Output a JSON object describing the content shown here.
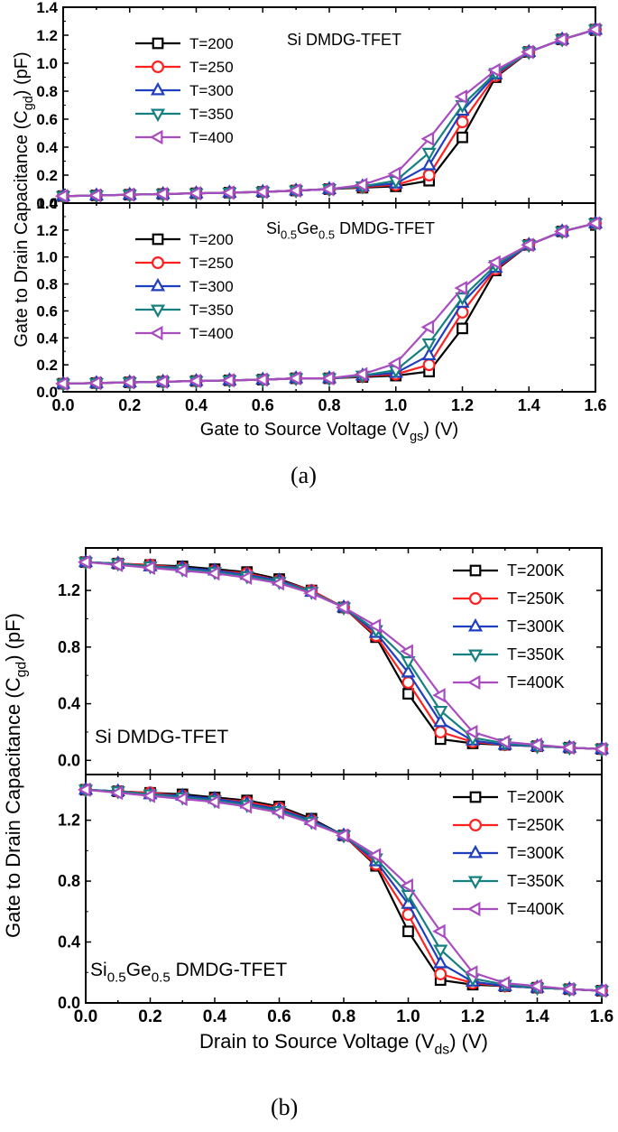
{
  "figure": {
    "label_a": "(a)",
    "label_b": "(b)"
  },
  "chart_data": [
    {
      "type": "line",
      "panel": "a-top",
      "annotation": "Si DMDG-TFET",
      "ylabel": "Gate to Drain Capacitance (C_gd) (pF)",
      "ylim": [
        0,
        1.4
      ],
      "xlim": [
        0,
        1.6
      ],
      "yticks": [
        "0.0",
        "0.2",
        "0.4",
        "0.6",
        "0.8",
        "1.0",
        "1.2",
        "1.4"
      ],
      "x": [
        0,
        0.1,
        0.2,
        0.3,
        0.4,
        0.5,
        0.6,
        0.7,
        0.8,
        0.9,
        1.0,
        1.1,
        1.2,
        1.3,
        1.4,
        1.5,
        1.6
      ],
      "legend": "top-left",
      "series": [
        {
          "name": "T=200",
          "color": "#000000",
          "marker": "square",
          "values": [
            0.05,
            0.055,
            0.06,
            0.065,
            0.07,
            0.075,
            0.08,
            0.09,
            0.1,
            0.11,
            0.12,
            0.16,
            0.47,
            0.9,
            1.08,
            1.17,
            1.24
          ]
        },
        {
          "name": "T=250",
          "color": "#ff2020",
          "marker": "circle",
          "values": [
            0.05,
            0.055,
            0.06,
            0.065,
            0.07,
            0.075,
            0.08,
            0.09,
            0.1,
            0.115,
            0.13,
            0.2,
            0.58,
            0.91,
            1.08,
            1.17,
            1.24
          ]
        },
        {
          "name": "T=300",
          "color": "#1f3fbf",
          "marker": "triangle-up",
          "values": [
            0.05,
            0.055,
            0.06,
            0.065,
            0.07,
            0.075,
            0.08,
            0.09,
            0.1,
            0.12,
            0.14,
            0.27,
            0.66,
            0.92,
            1.08,
            1.17,
            1.24
          ]
        },
        {
          "name": "T=350",
          "color": "#168080",
          "marker": "triangle-down",
          "values": [
            0.05,
            0.055,
            0.06,
            0.065,
            0.07,
            0.075,
            0.08,
            0.09,
            0.1,
            0.12,
            0.16,
            0.36,
            0.7,
            0.93,
            1.08,
            1.17,
            1.24
          ]
        },
        {
          "name": "T=400",
          "color": "#a94cc0",
          "marker": "triangle-left",
          "values": [
            0.05,
            0.055,
            0.06,
            0.065,
            0.07,
            0.075,
            0.08,
            0.09,
            0.1,
            0.13,
            0.21,
            0.46,
            0.76,
            0.95,
            1.08,
            1.17,
            1.24
          ]
        }
      ]
    },
    {
      "type": "line",
      "panel": "a-bottom",
      "annotation_base": "Si",
      "annotation_sub1": "0.5",
      "annotation_mid": "Ge",
      "annotation_sub2": "0.5",
      "annotation_tail": " DMDG-TFET",
      "xlabel": "Gate to Source Voltage (V_gs) (V)",
      "ylim": [
        0,
        1.4
      ],
      "xlim": [
        0,
        1.6
      ],
      "xticks": [
        "0.0",
        "0.2",
        "0.4",
        "0.6",
        "0.8",
        "1.0",
        "1.2",
        "1.4",
        "1.6"
      ],
      "yticks": [
        "0.0",
        "0.2",
        "0.4",
        "0.6",
        "0.8",
        "1.0",
        "1.2",
        "1.4"
      ],
      "x": [
        0,
        0.1,
        0.2,
        0.3,
        0.4,
        0.5,
        0.6,
        0.7,
        0.8,
        0.9,
        1.0,
        1.1,
        1.2,
        1.3,
        1.4,
        1.5,
        1.6
      ],
      "legend": "top-left",
      "series": [
        {
          "name": "T=200",
          "color": "#000000",
          "marker": "square",
          "values": [
            0.06,
            0.065,
            0.07,
            0.075,
            0.08,
            0.085,
            0.09,
            0.1,
            0.1,
            0.11,
            0.12,
            0.15,
            0.47,
            0.9,
            1.09,
            1.19,
            1.25
          ]
        },
        {
          "name": "T=250",
          "color": "#ff2020",
          "marker": "circle",
          "values": [
            0.06,
            0.065,
            0.07,
            0.075,
            0.08,
            0.085,
            0.09,
            0.1,
            0.1,
            0.115,
            0.13,
            0.2,
            0.59,
            0.91,
            1.09,
            1.19,
            1.25
          ]
        },
        {
          "name": "T=300",
          "color": "#1f3fbf",
          "marker": "triangle-up",
          "values": [
            0.06,
            0.065,
            0.07,
            0.075,
            0.08,
            0.085,
            0.09,
            0.1,
            0.1,
            0.12,
            0.14,
            0.27,
            0.66,
            0.92,
            1.09,
            1.19,
            1.25
          ]
        },
        {
          "name": "T=350",
          "color": "#168080",
          "marker": "triangle-down",
          "values": [
            0.06,
            0.065,
            0.07,
            0.075,
            0.08,
            0.085,
            0.09,
            0.1,
            0.1,
            0.12,
            0.16,
            0.36,
            0.7,
            0.94,
            1.09,
            1.19,
            1.25
          ]
        },
        {
          "name": "T=400",
          "color": "#a94cc0",
          "marker": "triangle-left",
          "values": [
            0.06,
            0.065,
            0.07,
            0.075,
            0.08,
            0.085,
            0.09,
            0.1,
            0.1,
            0.13,
            0.21,
            0.48,
            0.77,
            0.96,
            1.09,
            1.19,
            1.25
          ]
        }
      ]
    },
    {
      "type": "line",
      "panel": "b-top",
      "annotation": "Si DMDG-TFET",
      "ylabel": "Gate to Drain Capacitance (C_gd) (pF)",
      "ylim": [
        -0.1,
        1.5
      ],
      "xlim": [
        0,
        1.6
      ],
      "yticks": [
        "0.0",
        "0.4",
        "0.8",
        "1.2"
      ],
      "x": [
        0,
        0.1,
        0.2,
        0.3,
        0.4,
        0.5,
        0.6,
        0.7,
        0.8,
        0.9,
        1.0,
        1.1,
        1.2,
        1.3,
        1.4,
        1.5,
        1.6
      ],
      "legend": "top-right",
      "series": [
        {
          "name": "T=200K",
          "color": "#000000",
          "marker": "square",
          "values": [
            1.4,
            1.39,
            1.38,
            1.37,
            1.35,
            1.33,
            1.28,
            1.2,
            1.08,
            0.87,
            0.47,
            0.15,
            0.12,
            0.11,
            0.1,
            0.09,
            0.08
          ]
        },
        {
          "name": "T=250K",
          "color": "#ff2020",
          "marker": "circle",
          "values": [
            1.4,
            1.39,
            1.38,
            1.36,
            1.34,
            1.32,
            1.27,
            1.2,
            1.08,
            0.88,
            0.55,
            0.2,
            0.13,
            0.11,
            0.1,
            0.09,
            0.08
          ]
        },
        {
          "name": "T=300K",
          "color": "#1f3fbf",
          "marker": "triangle-up",
          "values": [
            1.4,
            1.39,
            1.37,
            1.36,
            1.34,
            1.31,
            1.27,
            1.19,
            1.08,
            0.9,
            0.62,
            0.27,
            0.14,
            0.11,
            0.1,
            0.09,
            0.08
          ]
        },
        {
          "name": "T=350K",
          "color": "#168080",
          "marker": "triangle-down",
          "values": [
            1.4,
            1.39,
            1.37,
            1.35,
            1.33,
            1.3,
            1.26,
            1.19,
            1.08,
            0.92,
            0.7,
            0.35,
            0.16,
            0.12,
            0.1,
            0.09,
            0.08
          ]
        },
        {
          "name": "T=400K",
          "color": "#a94cc0",
          "marker": "triangle-left",
          "values": [
            1.4,
            1.38,
            1.36,
            1.34,
            1.32,
            1.29,
            1.25,
            1.18,
            1.08,
            0.95,
            0.77,
            0.46,
            0.2,
            0.13,
            0.11,
            0.09,
            0.08
          ]
        }
      ]
    },
    {
      "type": "line",
      "panel": "b-bottom",
      "annotation_base": "Si",
      "annotation_sub1": "0.5",
      "annotation_mid": "Ge",
      "annotation_sub2": "0.5",
      "annotation_tail": " DMDG-TFET",
      "xlabel": "Drain to Source Voltage (V_ds) (V)",
      "ylim": [
        0,
        1.5
      ],
      "xlim": [
        0,
        1.6
      ],
      "xticks": [
        "0.0",
        "0.2",
        "0.4",
        "0.6",
        "0.8",
        "1.0",
        "1.2",
        "1.4",
        "1.6"
      ],
      "yticks": [
        "0.0",
        "0.4",
        "0.8",
        "1.2"
      ],
      "x": [
        0,
        0.1,
        0.2,
        0.3,
        0.4,
        0.5,
        0.6,
        0.7,
        0.8,
        0.9,
        1.0,
        1.1,
        1.2,
        1.3,
        1.4,
        1.5,
        1.6
      ],
      "legend": "top-right",
      "series": [
        {
          "name": "T=200K",
          "color": "#000000",
          "marker": "square",
          "values": [
            1.4,
            1.39,
            1.38,
            1.37,
            1.35,
            1.33,
            1.29,
            1.21,
            1.1,
            0.9,
            0.47,
            0.15,
            0.12,
            0.11,
            0.1,
            0.09,
            0.08
          ]
        },
        {
          "name": "T=250K",
          "color": "#ff2020",
          "marker": "circle",
          "values": [
            1.4,
            1.39,
            1.38,
            1.36,
            1.34,
            1.32,
            1.28,
            1.2,
            1.1,
            0.91,
            0.58,
            0.19,
            0.13,
            0.11,
            0.1,
            0.09,
            0.08
          ]
        },
        {
          "name": "T=300K",
          "color": "#1f3fbf",
          "marker": "triangle-up",
          "values": [
            1.4,
            1.39,
            1.37,
            1.36,
            1.34,
            1.31,
            1.27,
            1.2,
            1.1,
            0.93,
            0.65,
            0.26,
            0.14,
            0.11,
            0.1,
            0.09,
            0.08
          ]
        },
        {
          "name": "T=350K",
          "color": "#168080",
          "marker": "triangle-down",
          "values": [
            1.4,
            1.39,
            1.37,
            1.35,
            1.33,
            1.3,
            1.26,
            1.19,
            1.1,
            0.95,
            0.71,
            0.35,
            0.16,
            0.12,
            0.1,
            0.09,
            0.08
          ]
        },
        {
          "name": "T=400K",
          "color": "#a94cc0",
          "marker": "triangle-left",
          "values": [
            1.4,
            1.38,
            1.36,
            1.34,
            1.32,
            1.29,
            1.25,
            1.18,
            1.1,
            0.97,
            0.77,
            0.47,
            0.2,
            0.13,
            0.11,
            0.09,
            0.08
          ]
        }
      ]
    }
  ]
}
